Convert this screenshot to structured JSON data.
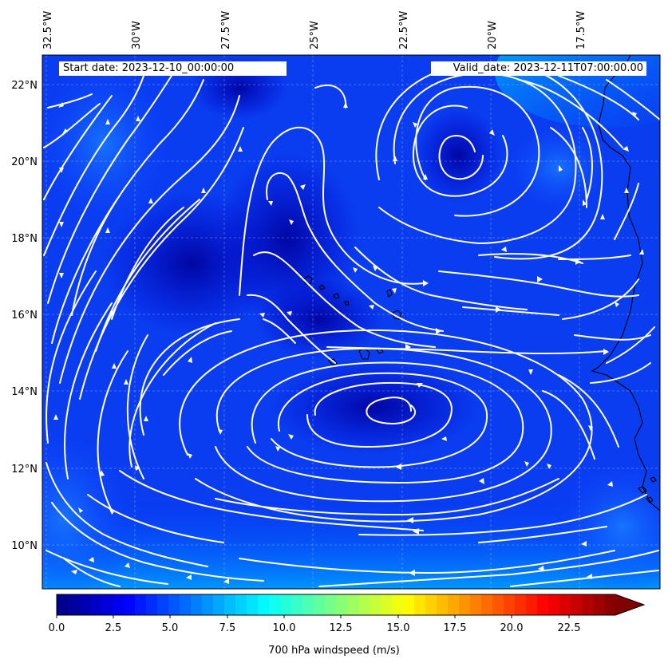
{
  "map": {
    "start_date": "Start date: 2023-12-10_00:00:00",
    "valid_date": "Valid_date: 2023-12-11T07:00:00.00",
    "lon_labels": [
      "32.5°W",
      "30°W",
      "27.5°W",
      "25°W",
      "22.5°W",
      "20°W",
      "17.5°W"
    ],
    "lat_labels": [
      "22°N",
      "20°N",
      "18°N",
      "16°N",
      "14°N",
      "12°N",
      "10°N"
    ],
    "extent": {
      "lon_min": -32.7,
      "lon_max": -15.4,
      "lat_min": 8.9,
      "lat_max": 22.8
    },
    "field": "700 hPa windspeed",
    "streamline_color": "#ffffff",
    "coastline_color": "#000000"
  },
  "colorbar": {
    "title": "700 hPa windspeed (m/s)",
    "tick_labels": [
      "0.0",
      "2.5",
      "5.0",
      "7.5",
      "10.0",
      "12.5",
      "15.0",
      "17.5",
      "20.0",
      "22.5"
    ],
    "colormap": "jet",
    "range": [
      0,
      25
    ],
    "extend": "max"
  }
}
